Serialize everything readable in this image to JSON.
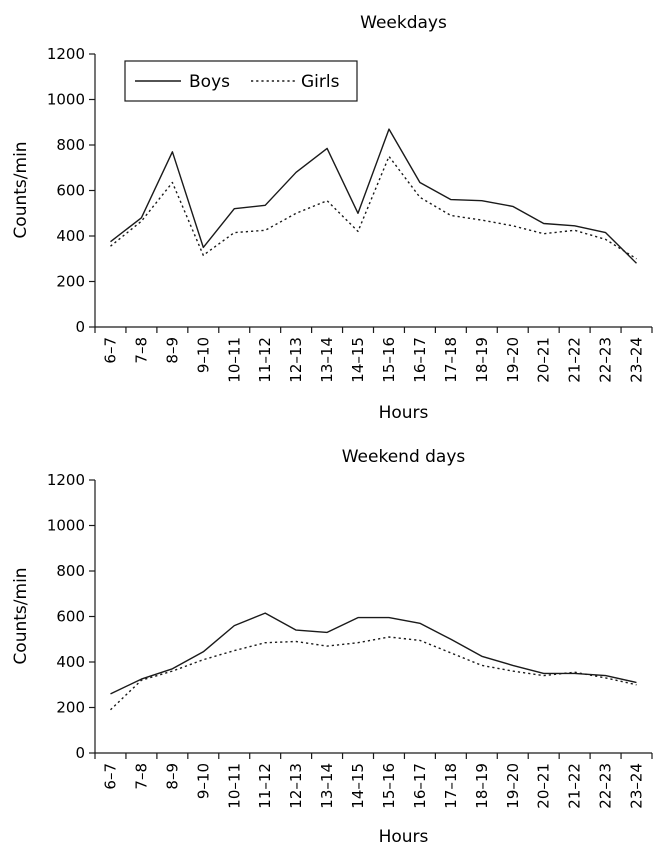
{
  "chart_data": [
    {
      "type": "line",
      "title": "Weekdays",
      "xlabel": "Hours",
      "ylabel": "Counts/min",
      "ylim": [
        0,
        1200
      ],
      "yticks": [
        0,
        200,
        400,
        600,
        800,
        1000,
        1200
      ],
      "grid": false,
      "legend": {
        "placement": "top-left",
        "entries": [
          "Boys",
          "Girls"
        ]
      },
      "categories": [
        "6–7",
        "7–8",
        "8–9",
        "9–10",
        "10–11",
        "11–12",
        "12–13",
        "13–14",
        "14–15",
        "15–16",
        "16–17",
        "17–18",
        "18–19",
        "19–20",
        "20–21",
        "21–22",
        "22–23",
        "23–24"
      ],
      "series": [
        {
          "name": "Boys",
          "style": "solid",
          "values": [
            375,
            480,
            770,
            350,
            520,
            535,
            680,
            785,
            500,
            870,
            635,
            560,
            555,
            530,
            455,
            445,
            415,
            280
          ]
        },
        {
          "name": "Girls",
          "style": "dotted",
          "values": [
            355,
            465,
            635,
            315,
            415,
            425,
            500,
            555,
            420,
            750,
            570,
            490,
            470,
            445,
            410,
            425,
            385,
            300
          ]
        }
      ]
    },
    {
      "type": "line",
      "title": "Weekend days",
      "xlabel": "Hours",
      "ylabel": "Counts/min",
      "ylim": [
        0,
        1200
      ],
      "yticks": [
        0,
        200,
        400,
        600,
        800,
        1000,
        1200
      ],
      "grid": false,
      "categories": [
        "6–7",
        "7–8",
        "8–9",
        "9–10",
        "10–11",
        "11–12",
        "12–13",
        "13–14",
        "14–15",
        "15–16",
        "16–17",
        "17–18",
        "18–19",
        "19–20",
        "20–21",
        "21–22",
        "22–23",
        "23–24"
      ],
      "series": [
        {
          "name": "Boys",
          "style": "solid",
          "values": [
            260,
            325,
            370,
            445,
            560,
            615,
            540,
            530,
            595,
            595,
            570,
            500,
            425,
            385,
            350,
            350,
            340,
            310
          ]
        },
        {
          "name": "Girls",
          "style": "dotted",
          "values": [
            190,
            320,
            360,
            410,
            450,
            485,
            490,
            470,
            485,
            510,
            495,
            440,
            385,
            360,
            340,
            355,
            330,
            300
          ]
        }
      ]
    }
  ]
}
